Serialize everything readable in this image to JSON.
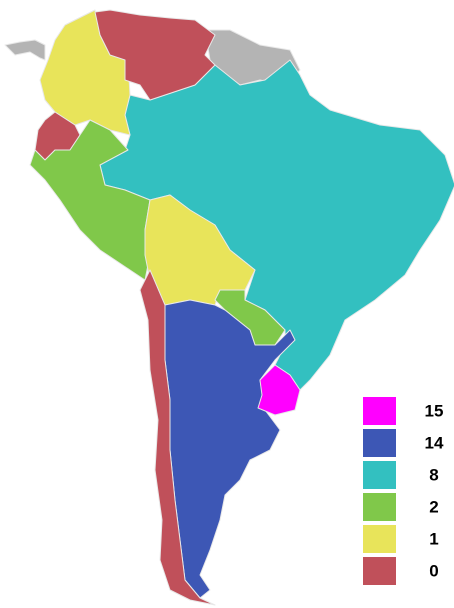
{
  "legend": [
    {
      "value": 15,
      "color": "#ff00ff"
    },
    {
      "value": 14,
      "color": "#3d57b5"
    },
    {
      "value": 8,
      "color": "#33c0c0"
    },
    {
      "value": 2,
      "color": "#80c84a"
    },
    {
      "value": 1,
      "color": "#e8e45a"
    },
    {
      "value": 0,
      "color": "#c0505a"
    }
  ]
}
